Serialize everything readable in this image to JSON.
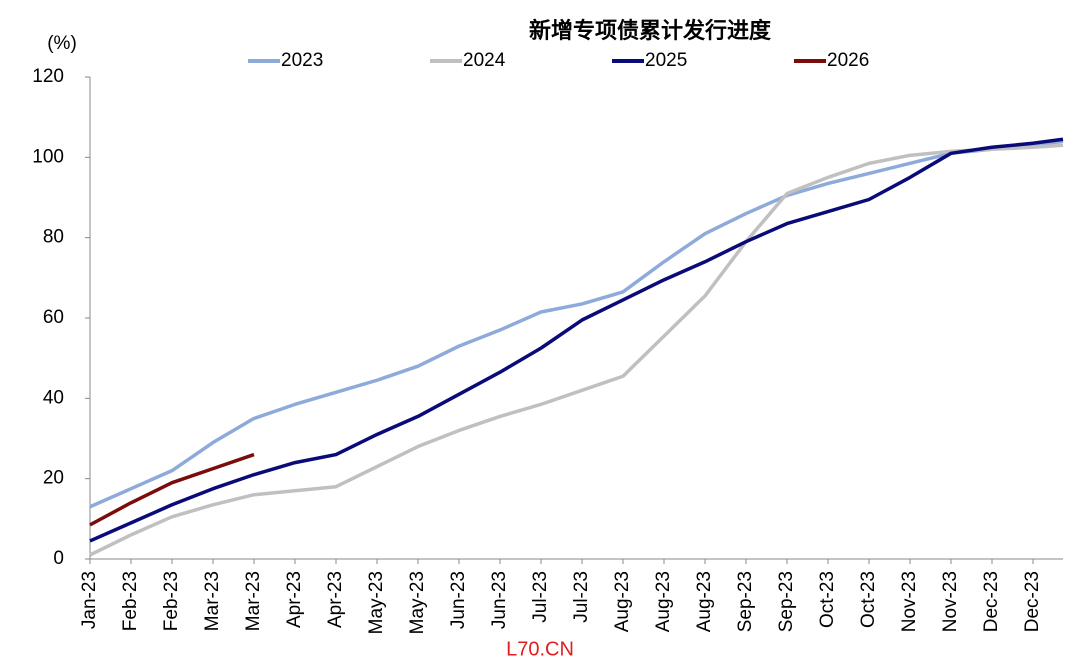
{
  "chart_data": {
    "type": "line",
    "title": "新增专项债累计发行进度",
    "y_label": "(%)",
    "categories": [
      "Jan-23",
      "Feb-23",
      "Feb-23",
      "Mar-23",
      "Mar-23",
      "Apr-23",
      "Apr-23",
      "May-23",
      "May-23",
      "Jun-23",
      "Jun-23",
      "Jul-23",
      "Jul-23",
      "Aug-23",
      "Aug-23",
      "Aug-23",
      "Sep-23",
      "Sep-23",
      "Oct-23",
      "Oct-23",
      "Nov-23",
      "Nov-23",
      "Dec-23",
      "Dec-23",
      null
    ],
    "series": [
      {
        "name": "2023",
        "color": "#8eaadb",
        "values": [
          13,
          17.5,
          22,
          29,
          35,
          38.5,
          41.5,
          44.5,
          48,
          53,
          57,
          61.5,
          63.5,
          66.5,
          74,
          81,
          86,
          90.5,
          93.5,
          96,
          98.5,
          101,
          102,
          103,
          104
        ]
      },
      {
        "name": "2024",
        "color": "#c0c0c0",
        "values": [
          1,
          6,
          10.5,
          13.5,
          16,
          17,
          18,
          23,
          28,
          32,
          35.5,
          38.5,
          42,
          45.5,
          55.5,
          65.5,
          79,
          91,
          95,
          98.5,
          100.5,
          101.5,
          102,
          102.5,
          103
        ]
      },
      {
        "name": "2025",
        "color": "#0a0a78",
        "values": [
          4.5,
          9,
          13.5,
          17.5,
          21,
          24,
          26,
          31,
          35.5,
          41,
          46.5,
          52.5,
          59.5,
          64.5,
          69.5,
          74,
          79,
          83.5,
          86.5,
          89.5,
          95,
          101,
          102.5,
          103.5,
          104.5
        ]
      },
      {
        "name": "2026",
        "color": "#7b0c0c",
        "values": [
          8.5,
          14,
          19,
          22.5,
          26,
          null,
          null,
          null,
          null,
          null,
          null,
          null,
          null,
          null,
          null,
          null,
          null,
          null,
          null,
          null,
          null,
          null,
          null,
          null,
          null
        ]
      }
    ],
    "ylim": [
      0,
      120
    ],
    "yticks": [
      0,
      20,
      40,
      60,
      80,
      100,
      120
    ],
    "legend": "top"
  },
  "watermark": "L70.CN"
}
